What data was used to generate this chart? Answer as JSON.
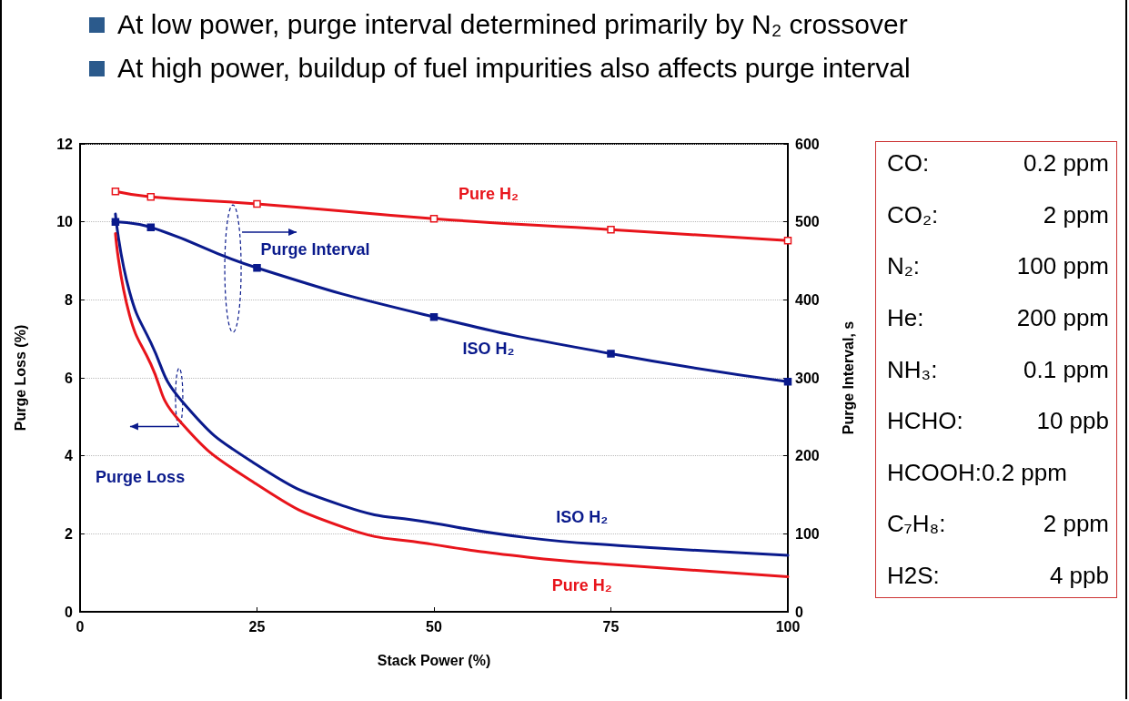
{
  "chart_data": {
    "type": "line",
    "title": "At low power, purge interval determined primarily by N₂ crossover",
    "subtitle": "At high power, buildup of fuel impurities also affects purge interval",
    "xlabel": "Stack Power (%)",
    "ylabel": "Purge Loss (%)",
    "y2label": "Purge Interval, s",
    "xlim": [
      0,
      100
    ],
    "xticks": [
      0,
      25,
      50,
      75,
      100
    ],
    "ylim": [
      0,
      12
    ],
    "yticks": [
      0,
      2,
      4,
      6,
      8,
      10,
      12
    ],
    "y2lim": [
      0,
      600
    ],
    "y2ticks": [
      0,
      100,
      200,
      300,
      400,
      500,
      600
    ],
    "grid": "y",
    "legend": false,
    "series": [
      {
        "name": "Pure H₂",
        "color": "#e8141b",
        "axis": "y2",
        "marker": "square",
        "x": [
          5,
          10,
          25,
          50,
          75,
          100
        ],
        "values": [
          539,
          532,
          523,
          504,
          490,
          476
        ]
      },
      {
        "name": "ISO H₂",
        "color": "#0a1a8c",
        "axis": "y2",
        "marker": "square",
        "x": [
          5,
          10,
          25,
          50,
          75,
          100
        ],
        "values": [
          500,
          493,
          441,
          378,
          331,
          295
        ]
      },
      {
        "name": "ISO H₂",
        "color": "#0a1a8c",
        "axis": "y",
        "marker": "none",
        "x": [
          5,
          7,
          10,
          14.4,
          24.7,
          37.5,
          49.1,
          63.2,
          76.1,
          100
        ],
        "values": [
          10.2,
          8.2,
          6.9,
          5.4,
          3.8,
          2.7,
          2.3,
          1.9,
          1.7,
          1.45
        ]
      },
      {
        "name": "Pure H₂",
        "color": "#e8141b",
        "axis": "y",
        "marker": "none",
        "x": [
          5,
          7,
          10,
          13.8,
          24.7,
          37.5,
          49.1,
          63.2,
          76.1,
          100
        ],
        "values": [
          9.7,
          7.6,
          6.35,
          4.95,
          3.3,
          2.15,
          1.75,
          1.4,
          1.2,
          0.9
        ]
      }
    ],
    "annotations": [
      "Purge Interval",
      "Purge Loss",
      "CO: 0.2 ppm",
      "CO₂: 2 ppm",
      "N₂: 100 ppm",
      "He: 200 ppm",
      "NH₃: 0.1 ppm",
      "HCHO: 10 ppb",
      "HCOOH:0.2 ppm",
      "C₇H₈: 2 ppm",
      "H2S: 4 ppb"
    ]
  }
}
